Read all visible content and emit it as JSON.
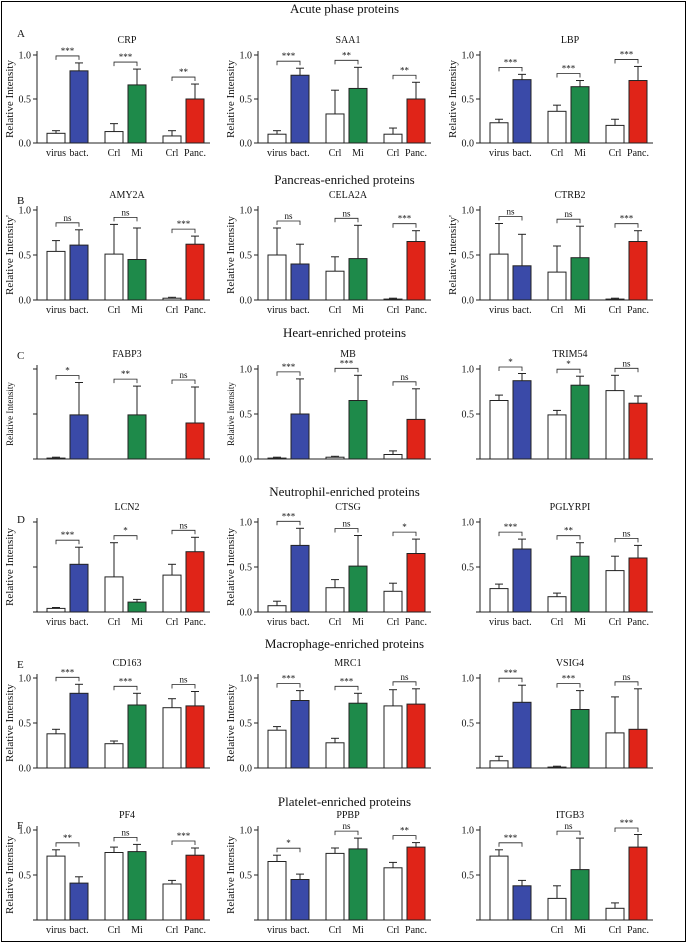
{
  "figure_title": "Acute phase proteins",
  "colors": {
    "bacterial": "#3a4aa8",
    "mi": "#1e8a4a",
    "pancreatitis": "#e02418",
    "control": "#ffffff",
    "edge": "#222222"
  },
  "sections": [
    {
      "letter": "A",
      "title": "Acute phase proteins"
    },
    {
      "letter": "B",
      "title": "Pancreas-enriched proteins"
    },
    {
      "letter": "C",
      "title": "Heart-enriched proteins"
    },
    {
      "letter": "D",
      "title": "Neutrophil-enriched proteins"
    },
    {
      "letter": "E",
      "title": "Macrophage-enriched proteins"
    },
    {
      "letter": "F",
      "title": "Platelet-enriched proteins"
    }
  ],
  "chart_data": [
    {
      "type": "bar",
      "section": "A",
      "title": "CRP",
      "ylabel": "Relative Intensity",
      "ylim": [
        0,
        1.0
      ],
      "yticks": [
        "0.0",
        "0.5",
        "1.0"
      ],
      "categories": [
        "virus",
        "bact.",
        "Crl",
        "Mi",
        "Crl",
        "Panc."
      ],
      "values": [
        0.11,
        0.82,
        0.13,
        0.66,
        0.08,
        0.5
      ],
      "errors": [
        0.03,
        0.09,
        0.09,
        0.18,
        0.06,
        0.17
      ],
      "comparisons": [
        {
          "pair": [
            0,
            1
          ],
          "label": "***"
        },
        {
          "pair": [
            2,
            3
          ],
          "label": "***"
        },
        {
          "pair": [
            4,
            5
          ],
          "label": "**"
        }
      ]
    },
    {
      "type": "bar",
      "section": "A",
      "title": "SAA1",
      "ylabel": "Relative Intensity",
      "ylim": [
        0,
        1.0
      ],
      "yticks": [
        "0.0",
        "0.5",
        "1.0"
      ],
      "categories": [
        "virus",
        "bact.",
        "Crl",
        "Mi",
        "Crl",
        "Panc."
      ],
      "values": [
        0.1,
        0.77,
        0.33,
        0.62,
        0.1,
        0.5
      ],
      "errors": [
        0.04,
        0.08,
        0.27,
        0.24,
        0.07,
        0.19
      ],
      "comparisons": [
        {
          "pair": [
            0,
            1
          ],
          "label": "***"
        },
        {
          "pair": [
            2,
            3
          ],
          "label": "**"
        },
        {
          "pair": [
            4,
            5
          ],
          "label": "**"
        }
      ]
    },
    {
      "type": "bar",
      "section": "A",
      "title": "LBP",
      "ylabel": "Relative Intensity",
      "ylim": [
        0,
        1.0
      ],
      "yticks": [
        "0.0",
        "0.5",
        "1.0"
      ],
      "categories": [
        "virus",
        "bact.",
        "Crl",
        "Mi",
        "Crl",
        "Panc."
      ],
      "values": [
        0.23,
        0.72,
        0.36,
        0.64,
        0.2,
        0.71
      ],
      "errors": [
        0.04,
        0.06,
        0.07,
        0.07,
        0.07,
        0.16
      ],
      "comparisons": [
        {
          "pair": [
            0,
            1
          ],
          "label": "***"
        },
        {
          "pair": [
            2,
            3
          ],
          "label": "***"
        },
        {
          "pair": [
            4,
            5
          ],
          "label": "***"
        }
      ]
    },
    {
      "type": "bar",
      "section": "B",
      "title": "AMY2A",
      "ylabel": "Relative Intensity'",
      "ylim": [
        0,
        1.0
      ],
      "yticks": [
        "0.0",
        "0.5",
        "1.0"
      ],
      "categories": [
        "virus",
        "bact.",
        "Crl",
        "Mi",
        "Crl",
        "Panc."
      ],
      "values": [
        0.54,
        0.61,
        0.51,
        0.45,
        0.02,
        0.62
      ],
      "errors": [
        0.12,
        0.17,
        0.33,
        0.35,
        0.01,
        0.09
      ],
      "comparisons": [
        {
          "pair": [
            0,
            1
          ],
          "label": "ns"
        },
        {
          "pair": [
            2,
            3
          ],
          "label": "ns"
        },
        {
          "pair": [
            4,
            5
          ],
          "label": "***"
        }
      ]
    },
    {
      "type": "bar",
      "section": "B",
      "title": "CELA2A",
      "ylabel": "Relative Intensity",
      "ylim": [
        0,
        1.0
      ],
      "yticks": [
        "0.0",
        "0.5",
        "1.0"
      ],
      "categories": [
        "virus",
        "bact.",
        "Crl",
        "Mi",
        "Crl",
        "Panc."
      ],
      "values": [
        0.5,
        0.4,
        0.32,
        0.46,
        0.01,
        0.65
      ],
      "errors": [
        0.3,
        0.22,
        0.16,
        0.37,
        0.01,
        0.12
      ],
      "comparisons": [
        {
          "pair": [
            0,
            1
          ],
          "label": "ns"
        },
        {
          "pair": [
            2,
            3
          ],
          "label": "ns"
        },
        {
          "pair": [
            4,
            5
          ],
          "label": "***"
        }
      ]
    },
    {
      "type": "bar",
      "section": "B",
      "title": "CTRB2",
      "ylabel": "Relative Intensity'",
      "ylim": [
        0,
        1.0
      ],
      "yticks": [
        "0.0",
        "0.5",
        "1.0"
      ],
      "categories": [
        "virus",
        "bact.",
        "Crl",
        "Mi",
        "Crl",
        "Panc."
      ],
      "values": [
        0.51,
        0.38,
        0.31,
        0.47,
        0.01,
        0.65
      ],
      "errors": [
        0.34,
        0.35,
        0.29,
        0.35,
        0.01,
        0.12
      ],
      "comparisons": [
        {
          "pair": [
            0,
            1
          ],
          "label": "ns"
        },
        {
          "pair": [
            2,
            3
          ],
          "label": "ns"
        },
        {
          "pair": [
            4,
            5
          ],
          "label": "***"
        }
      ]
    },
    {
      "type": "bar",
      "section": "C",
      "title": "FABP3",
      "ylabel": "Relative Intensity",
      "ylim": [
        0,
        1.0
      ],
      "yticks": [
        "",
        "",
        ""
      ],
      "categories": [
        "",
        "",
        "",
        "",
        "",
        ""
      ],
      "values": [
        0.01,
        0.49,
        0.0,
        0.49,
        0.0,
        0.4
      ],
      "errors": [
        0.01,
        0.36,
        0.0,
        0.32,
        0.0,
        0.4
      ],
      "comparisons": [
        {
          "pair": [
            0,
            1
          ],
          "label": "*"
        },
        {
          "pair": [
            2,
            3
          ],
          "label": "**"
        },
        {
          "pair": [
            4,
            5
          ],
          "label": "ns"
        }
      ]
    },
    {
      "type": "bar",
      "section": "C",
      "title": "MB",
      "ylabel": "Relative Intensity",
      "ylim": [
        0,
        1.0
      ],
      "yticks": [
        "0.0",
        "0.5",
        "1.0"
      ],
      "categories": [
        "",
        "",
        "",
        "",
        "",
        ""
      ],
      "values": [
        0.01,
        0.5,
        0.02,
        0.65,
        0.05,
        0.44
      ],
      "errors": [
        0.01,
        0.39,
        0.01,
        0.28,
        0.04,
        0.34
      ],
      "comparisons": [
        {
          "pair": [
            0,
            1
          ],
          "label": "***"
        },
        {
          "pair": [
            2,
            3
          ],
          "label": "***"
        },
        {
          "pair": [
            4,
            5
          ],
          "label": "ns"
        }
      ]
    },
    {
      "type": "bar",
      "section": "C",
      "title": "TRIM54",
      "ylabel": "",
      "ylim": [
        0,
        1.0
      ],
      "yticks": [
        "",
        "0.5",
        "1.0"
      ],
      "categories": [
        "",
        "",
        "",
        "",
        "",
        ""
      ],
      "values": [
        0.65,
        0.87,
        0.49,
        0.82,
        0.76,
        0.62
      ],
      "errors": [
        0.06,
        0.08,
        0.05,
        0.1,
        0.17,
        0.08
      ],
      "comparisons": [
        {
          "pair": [
            0,
            1
          ],
          "label": "*"
        },
        {
          "pair": [
            2,
            3
          ],
          "label": "*"
        },
        {
          "pair": [
            4,
            5
          ],
          "label": "ns"
        }
      ]
    },
    {
      "type": "bar",
      "section": "D",
      "title": "LCN2",
      "ylabel": "Relative Intensity",
      "ylim": [
        0,
        1.0
      ],
      "yticks": [
        "",
        "",
        ""
      ],
      "categories": [
        "virus",
        "bact.",
        "Crl",
        "Mi",
        "Crl",
        "Panc."
      ],
      "values": [
        0.04,
        0.53,
        0.39,
        0.11,
        0.41,
        0.67
      ],
      "errors": [
        0.01,
        0.19,
        0.38,
        0.03,
        0.12,
        0.16
      ],
      "comparisons": [
        {
          "pair": [
            0,
            1
          ],
          "label": "***"
        },
        {
          "pair": [
            2,
            3
          ],
          "label": "*"
        },
        {
          "pair": [
            4,
            5
          ],
          "label": "ns"
        }
      ]
    },
    {
      "type": "bar",
      "section": "D",
      "title": "CTSG",
      "ylabel": "Relative Intensity",
      "ylim": [
        0,
        1.0
      ],
      "yticks": [
        "0.0",
        "0.5",
        "1.0"
      ],
      "categories": [
        "virus",
        "bact.",
        "Crl",
        "Mi",
        "Crl",
        "Panc."
      ],
      "values": [
        0.07,
        0.74,
        0.27,
        0.51,
        0.23,
        0.65
      ],
      "errors": [
        0.05,
        0.19,
        0.09,
        0.34,
        0.09,
        0.16
      ],
      "comparisons": [
        {
          "pair": [
            0,
            1
          ],
          "label": "***"
        },
        {
          "pair": [
            2,
            3
          ],
          "label": "ns"
        },
        {
          "pair": [
            4,
            5
          ],
          "label": "*"
        }
      ]
    },
    {
      "type": "bar",
      "section": "D",
      "title": "PGLYRPI",
      "ylabel": "",
      "ylim": [
        0,
        1.0
      ],
      "yticks": [
        "",
        "0.5",
        "1.0"
      ],
      "categories": [
        "virus",
        "bact.",
        "Crl",
        "Mi",
        "Crl",
        "Panc."
      ],
      "values": [
        0.26,
        0.7,
        0.17,
        0.62,
        0.46,
        0.6
      ],
      "errors": [
        0.05,
        0.11,
        0.04,
        0.15,
        0.16,
        0.14
      ],
      "comparisons": [
        {
          "pair": [
            0,
            1
          ],
          "label": "***"
        },
        {
          "pair": [
            2,
            3
          ],
          "label": "**"
        },
        {
          "pair": [
            4,
            5
          ],
          "label": "ns"
        }
      ]
    },
    {
      "type": "bar",
      "section": "E",
      "title": "CD163",
      "ylabel": "Relative Intensity",
      "ylim": [
        0,
        1.0
      ],
      "yticks": [
        "0.0",
        "0.5",
        "1.0"
      ],
      "categories": [
        "",
        "",
        "",
        "",
        "",
        ""
      ],
      "values": [
        0.38,
        0.83,
        0.27,
        0.7,
        0.67,
        0.69
      ],
      "errors": [
        0.05,
        0.1,
        0.03,
        0.13,
        0.1,
        0.16
      ],
      "comparisons": [
        {
          "pair": [
            0,
            1
          ],
          "label": "***"
        },
        {
          "pair": [
            2,
            3
          ],
          "label": "***"
        },
        {
          "pair": [
            4,
            5
          ],
          "label": "ns"
        }
      ]
    },
    {
      "type": "bar",
      "section": "E",
      "title": "MRC1",
      "ylabel": "Relative Intensity",
      "ylim": [
        0,
        1.0
      ],
      "yticks": [
        "0.0",
        "0.5",
        "1.0"
      ],
      "categories": [
        "",
        "",
        "",
        "",
        "",
        ""
      ],
      "values": [
        0.42,
        0.75,
        0.28,
        0.72,
        0.69,
        0.71
      ],
      "errors": [
        0.04,
        0.11,
        0.05,
        0.11,
        0.18,
        0.17
      ],
      "comparisons": [
        {
          "pair": [
            0,
            1
          ],
          "label": "***"
        },
        {
          "pair": [
            2,
            3
          ],
          "label": "***"
        },
        {
          "pair": [
            4,
            5
          ],
          "label": "ns"
        }
      ]
    },
    {
      "type": "bar",
      "section": "E",
      "title": "VSIG4",
      "ylabel": "",
      "ylim": [
        0,
        1.0
      ],
      "yticks": [
        "",
        "0.5",
        "1.0"
      ],
      "categories": [
        "",
        "",
        "",
        "",
        "",
        ""
      ],
      "values": [
        0.08,
        0.73,
        0.01,
        0.65,
        0.39,
        0.43
      ],
      "errors": [
        0.05,
        0.19,
        0.01,
        0.21,
        0.4,
        0.45
      ],
      "comparisons": [
        {
          "pair": [
            0,
            1
          ],
          "label": "***"
        },
        {
          "pair": [
            2,
            3
          ],
          "label": "***"
        },
        {
          "pair": [
            4,
            5
          ],
          "label": "ns"
        }
      ]
    },
    {
      "type": "bar",
      "section": "F",
      "title": "PF4",
      "ylabel": "Relative Intensity",
      "ylim": [
        0,
        1.0
      ],
      "yticks": [
        "",
        "0.5",
        "1.0"
      ],
      "categories": [
        "virus",
        "bact.",
        "Crl",
        "Mi",
        "Crl",
        "Panc."
      ],
      "values": [
        0.71,
        0.41,
        0.75,
        0.76,
        0.4,
        0.72
      ],
      "errors": [
        0.07,
        0.07,
        0.06,
        0.08,
        0.04,
        0.08
      ],
      "comparisons": [
        {
          "pair": [
            0,
            1
          ],
          "label": "**"
        },
        {
          "pair": [
            2,
            3
          ],
          "label": "ns"
        },
        {
          "pair": [
            4,
            5
          ],
          "label": "***"
        }
      ]
    },
    {
      "type": "bar",
      "section": "F",
      "title": "PPBP",
      "ylabel": "Relative Intensity",
      "ylim": [
        0,
        1.0
      ],
      "yticks": [
        "",
        "0.5",
        "1.0"
      ],
      "categories": [
        "virus",
        "bact.",
        "Crl",
        "Mi",
        "Crl",
        "Panc."
      ],
      "values": [
        0.65,
        0.45,
        0.74,
        0.79,
        0.58,
        0.81
      ],
      "errors": [
        0.07,
        0.06,
        0.06,
        0.12,
        0.06,
        0.05
      ],
      "comparisons": [
        {
          "pair": [
            0,
            1
          ],
          "label": "*"
        },
        {
          "pair": [
            2,
            3
          ],
          "label": "ns"
        },
        {
          "pair": [
            4,
            5
          ],
          "label": "**"
        }
      ]
    },
    {
      "type": "bar",
      "section": "F",
      "title": "ITGB3",
      "ylabel": "",
      "ylim": [
        0,
        1.0
      ],
      "yticks": [
        "",
        "0.5",
        "1.0"
      ],
      "categories": [
        "",
        "",
        "Crl",
        "Mi",
        "Crl",
        "Panc."
      ],
      "values": [
        0.71,
        0.38,
        0.24,
        0.56,
        0.13,
        0.81
      ],
      "errors": [
        0.07,
        0.06,
        0.14,
        0.35,
        0.06,
        0.14
      ],
      "comparisons": [
        {
          "pair": [
            0,
            1
          ],
          "label": "***"
        },
        {
          "pair": [
            2,
            3
          ],
          "label": "ns"
        },
        {
          "pair": [
            4,
            5
          ],
          "label": "***"
        }
      ]
    }
  ]
}
